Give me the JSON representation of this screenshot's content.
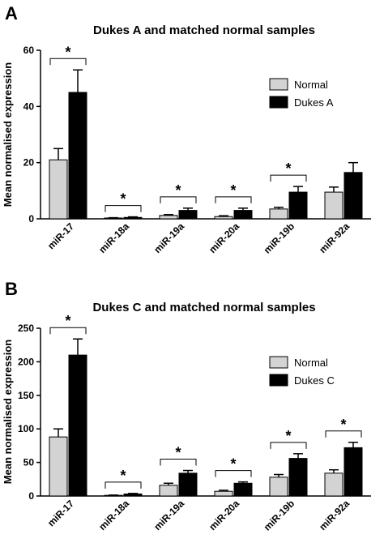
{
  "chart_data": [
    {
      "panel": "A",
      "type": "bar",
      "title": "Dukes A and matched normal samples",
      "ylabel": "Mean normalised expression",
      "xlabel": "",
      "ylim": [
        0,
        60
      ],
      "yticks": [
        0,
        20,
        40,
        60
      ],
      "categories": [
        "miR-17",
        "miR-18a",
        "miR-19a",
        "miR-20a",
        "miR-19b",
        "miR-92a"
      ],
      "series": [
        {
          "name": "Normal",
          "color": "#d3d3d3",
          "values": [
            21,
            0.3,
            1.2,
            0.8,
            3.5,
            9.5
          ],
          "errors": [
            4,
            0.1,
            0.3,
            0.3,
            0.6,
            1.8
          ]
        },
        {
          "name": "Dukes A",
          "color": "#000000",
          "values": [
            45,
            0.5,
            3,
            3,
            9.5,
            16.5
          ],
          "errors": [
            8,
            0.2,
            0.8,
            0.8,
            2,
            3.5
          ]
        }
      ],
      "significant": [
        true,
        true,
        true,
        true,
        true,
        false
      ],
      "significance_marker": "*",
      "legend_position": "right"
    },
    {
      "panel": "B",
      "type": "bar",
      "title": "Dukes C and matched normal samples",
      "ylabel": "Mean normalised expression",
      "xlabel": "",
      "ylim": [
        0,
        250
      ],
      "yticks": [
        0,
        50,
        100,
        150,
        200,
        250
      ],
      "categories": [
        "miR-17",
        "miR-18a",
        "miR-19a",
        "miR-20a",
        "miR-19b",
        "miR-92a"
      ],
      "series": [
        {
          "name": "Normal",
          "color": "#d3d3d3",
          "values": [
            88,
            1,
            16,
            7,
            28,
            34
          ],
          "errors": [
            12,
            0.4,
            3,
            1.5,
            4,
            5
          ]
        },
        {
          "name": "Dukes C",
          "color": "#000000",
          "values": [
            210,
            3,
            34,
            19,
            56,
            72
          ],
          "errors": [
            24,
            0.8,
            4,
            2,
            7,
            8
          ]
        }
      ],
      "significant": [
        true,
        true,
        true,
        true,
        true,
        true
      ],
      "significance_marker": "*",
      "legend_position": "right"
    }
  ]
}
